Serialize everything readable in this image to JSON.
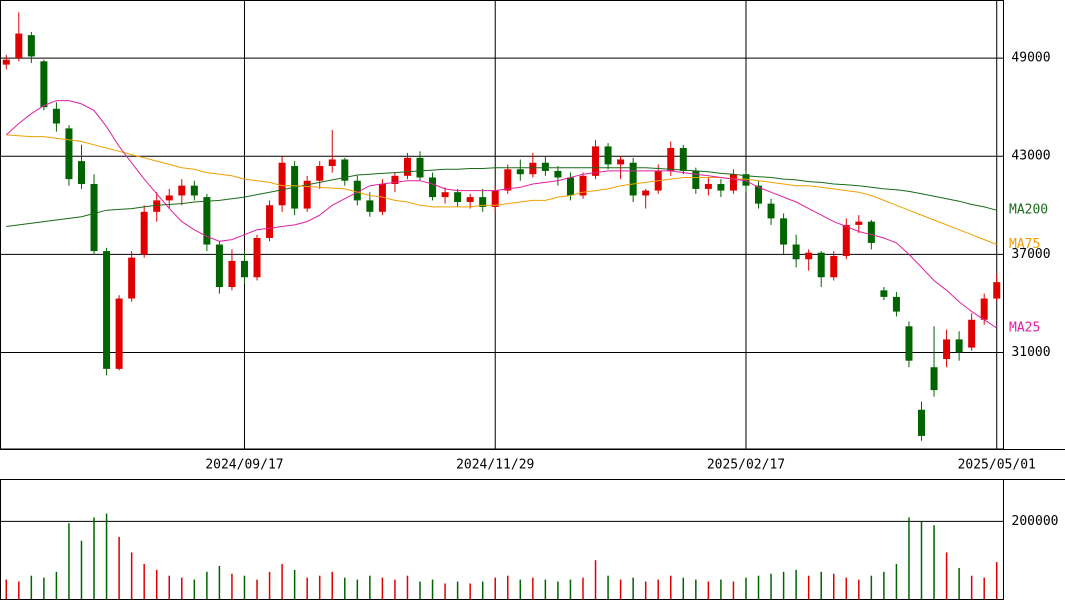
{
  "chart_data": [
    {
      "type": "candlestick",
      "categories": [
        null,
        null,
        null,
        null,
        null,
        null,
        null,
        null,
        null,
        null,
        null,
        null,
        null,
        null,
        null,
        null,
        null,
        null,
        null,
        "2024/09/17",
        null,
        null,
        null,
        null,
        null,
        null,
        null,
        null,
        null,
        null,
        null,
        null,
        null,
        null,
        null,
        null,
        null,
        null,
        null,
        "2024/11/29",
        null,
        null,
        null,
        null,
        null,
        null,
        null,
        null,
        null,
        null,
        null,
        null,
        null,
        null,
        null,
        null,
        null,
        null,
        null,
        "2025/02/17",
        null,
        null,
        null,
        null,
        null,
        null,
        null,
        null,
        null,
        null,
        null,
        null,
        null,
        null,
        null,
        null,
        null,
        null,
        null,
        "2025/05/01"
      ],
      "open": [
        48600,
        49000,
        50400,
        48800,
        45900,
        44700,
        42700,
        41300,
        37200,
        30000,
        34300,
        37000,
        39600,
        40300,
        40600,
        41200,
        40500,
        37600,
        35000,
        36600,
        35600,
        38000,
        40000,
        42400,
        39800,
        41500,
        42400,
        42800,
        41500,
        40300,
        39600,
        41300,
        41800,
        42900,
        41700,
        40500,
        40800,
        40200,
        40500,
        39900,
        40900,
        42200,
        41900,
        42600,
        42100,
        41700,
        40600,
        41800,
        43600,
        42500,
        42600,
        40600,
        40900,
        42100,
        43500,
        42100,
        41000,
        41300,
        40900,
        41900,
        41200,
        40100,
        39200,
        37600,
        36700,
        37100,
        35600,
        36900,
        38800,
        39000,
        34800,
        34400,
        32600,
        27500,
        30100,
        30600,
        31800,
        31300,
        33000,
        34300
      ],
      "high": [
        49200,
        51800,
        50600,
        48900,
        46300,
        44900,
        43700,
        41900,
        37400,
        34500,
        37200,
        40000,
        40800,
        41000,
        41600,
        41500,
        40700,
        37800,
        37300,
        37200,
        38200,
        40300,
        43000,
        42700,
        41800,
        42700,
        44600,
        42900,
        41800,
        40800,
        41600,
        42000,
        43200,
        43300,
        42000,
        41100,
        41000,
        40700,
        41000,
        41200,
        42500,
        42800,
        43200,
        43000,
        42400,
        42000,
        42000,
        44000,
        43800,
        43000,
        42900,
        41000,
        42500,
        43900,
        43700,
        42300,
        41700,
        41600,
        42200,
        42100,
        41500,
        40400,
        39500,
        38200,
        37300,
        37200,
        37200,
        39200,
        39400,
        39100,
        35000,
        34700,
        32900,
        28000,
        32600,
        32400,
        32300,
        33400,
        34600,
        35800
      ],
      "low": [
        48300,
        48800,
        48700,
        45800,
        44500,
        41200,
        41000,
        37000,
        29600,
        29900,
        34100,
        36800,
        39000,
        39800,
        40000,
        40300,
        37200,
        34600,
        34800,
        35200,
        35400,
        37800,
        39600,
        39400,
        39600,
        41000,
        42000,
        41200,
        40000,
        39300,
        39400,
        40800,
        41600,
        41500,
        40300,
        40100,
        39900,
        39800,
        39600,
        39500,
        40700,
        41500,
        41700,
        41800,
        41200,
        40300,
        40400,
        41600,
        42200,
        41600,
        40200,
        39800,
        40700,
        41800,
        41900,
        40700,
        40600,
        40500,
        40700,
        40800,
        39800,
        38800,
        37000,
        36200,
        36000,
        35000,
        35400,
        36700,
        38300,
        37300,
        34200,
        33200,
        30100,
        25600,
        28300,
        30100,
        30500,
        31100,
        32700,
        34100
      ],
      "close": [
        48900,
        50500,
        49100,
        46000,
        45000,
        41600,
        41300,
        37200,
        30000,
        34300,
        36800,
        39600,
        40300,
        40600,
        41200,
        40600,
        37600,
        35000,
        36600,
        35600,
        38000,
        40000,
        42600,
        39800,
        41500,
        42400,
        42800,
        41500,
        40300,
        39600,
        41300,
        41800,
        42900,
        41700,
        40500,
        40800,
        40200,
        40500,
        39900,
        40900,
        42200,
        41900,
        42600,
        42100,
        41700,
        40600,
        41800,
        43600,
        42500,
        42800,
        40600,
        40900,
        42100,
        43500,
        42100,
        41000,
        41300,
        40900,
        41900,
        41200,
        40100,
        39200,
        37600,
        36700,
        37100,
        35600,
        36900,
        38800,
        39000,
        37700,
        34400,
        33500,
        30500,
        25900,
        28700,
        31800,
        31000,
        33000,
        34300,
        35300
      ],
      "up_color": "#e00000",
      "down_color": "#006400",
      "series": [
        {
          "name": "MA200",
          "color": "#1a6b1a",
          "values": [
            38700,
            38800,
            38900,
            39000,
            39100,
            39200,
            39300,
            39500,
            39700,
            39750,
            39800,
            39900,
            40000,
            40050,
            40100,
            40200,
            40250,
            40300,
            40400,
            40500,
            40650,
            40800,
            40950,
            41100,
            41250,
            41400,
            41550,
            41700,
            41850,
            41900,
            41950,
            42000,
            42050,
            42100,
            42150,
            42200,
            42200,
            42250,
            42250,
            42300,
            42300,
            42300,
            42300,
            42300,
            42300,
            42300,
            42300,
            42300,
            42300,
            42300,
            42300,
            42300,
            42250,
            42200,
            42150,
            42100,
            42050,
            41950,
            41900,
            41800,
            41750,
            41700,
            41600,
            41550,
            41450,
            41400,
            41300,
            41250,
            41200,
            41100,
            41000,
            40950,
            40850,
            40700,
            40550,
            40400,
            40250,
            40050,
            39900,
            39700
          ]
        },
        {
          "name": "MA75",
          "color": "#f0a000",
          "values": [
            44300,
            44250,
            44200,
            44200,
            44100,
            44000,
            43900,
            43700,
            43500,
            43300,
            43100,
            42900,
            42700,
            42500,
            42300,
            42200,
            42000,
            41900,
            41800,
            41600,
            41500,
            41400,
            41200,
            41200,
            41150,
            41100,
            41050,
            41000,
            40800,
            40600,
            40500,
            40300,
            40200,
            40000,
            39900,
            39900,
            39900,
            39900,
            40000,
            40000,
            40100,
            40200,
            40300,
            40300,
            40500,
            40600,
            40800,
            40900,
            41000,
            41200,
            41300,
            41400,
            41500,
            41600,
            41700,
            41700,
            41700,
            41700,
            41600,
            41600,
            41500,
            41400,
            41300,
            41200,
            41200,
            41100,
            41000,
            40900,
            40800,
            40600,
            40300,
            40000,
            39700,
            39400,
            39100,
            38800,
            38500,
            38200,
            37900,
            37600
          ]
        },
        {
          "name": "MA25",
          "color": "#e020a0",
          "values": [
            44300,
            45000,
            45600,
            46100,
            46400,
            46400,
            46200,
            45800,
            44800,
            43600,
            42600,
            41600,
            40700,
            39800,
            39000,
            38500,
            38100,
            37800,
            37900,
            38200,
            38500,
            38600,
            38700,
            38800,
            39000,
            39400,
            40000,
            40400,
            40800,
            41200,
            41300,
            41400,
            41500,
            41500,
            41300,
            41000,
            40900,
            40900,
            40900,
            40900,
            41000,
            41100,
            41300,
            41400,
            41500,
            41700,
            41900,
            42000,
            42100,
            42100,
            42100,
            42100,
            42100,
            42100,
            42000,
            41900,
            41800,
            41700,
            41600,
            41500,
            41100,
            40800,
            40500,
            40200,
            39800,
            39400,
            39000,
            38700,
            38400,
            38200,
            38000,
            37700,
            37000,
            36200,
            35400,
            34800,
            34100,
            33500,
            33000,
            32500
          ]
        }
      ],
      "ylim": [
        25100,
        52550
      ],
      "yticks": [
        31000,
        37000,
        43000,
        49000
      ],
      "grid": true
    },
    {
      "type": "bar",
      "values": [
        50000,
        45000,
        60000,
        55000,
        70000,
        195000,
        150000,
        210000,
        220000,
        160000,
        120000,
        90000,
        75000,
        60000,
        55000,
        50000,
        70000,
        85000,
        65000,
        60000,
        50000,
        70000,
        90000,
        75000,
        55000,
        60000,
        70000,
        55000,
        50000,
        60000,
        55000,
        50000,
        60000,
        45000,
        50000,
        40000,
        45000,
        40000,
        45000,
        55000,
        60000,
        50000,
        55000,
        50000,
        45000,
        50000,
        55000,
        100000,
        60000,
        50000,
        55000,
        45000,
        50000,
        60000,
        55000,
        50000,
        45000,
        50000,
        45000,
        55000,
        60000,
        65000,
        70000,
        75000,
        60000,
        70000,
        65000,
        55000,
        50000,
        60000,
        70000,
        90000,
        210000,
        200000,
        190000,
        120000,
        80000,
        60000,
        55000,
        95000
      ],
      "ylim": [
        0,
        309000
      ],
      "yticks": [
        200000
      ],
      "grid": true
    }
  ]
}
